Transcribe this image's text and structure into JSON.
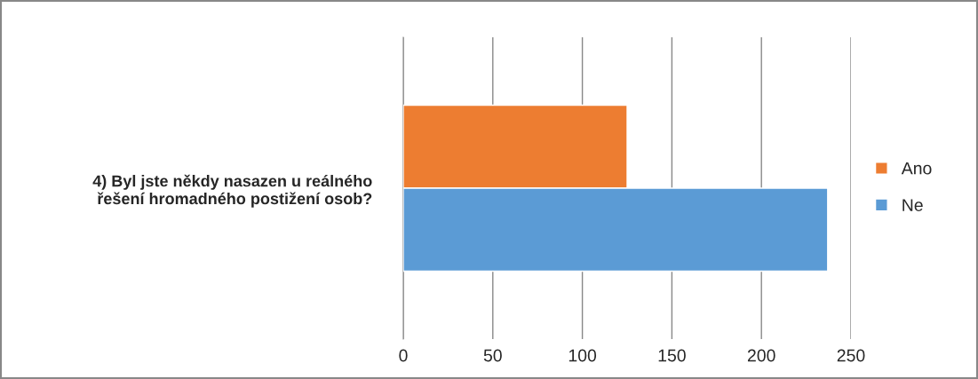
{
  "chart_data": {
    "type": "bar",
    "orientation": "horizontal",
    "categories": [
      "4) Byl jste někdy nasazen u reálného řešení hromadného postižení osob?"
    ],
    "series": [
      {
        "name": "Ano",
        "color": "#ed7d31",
        "values": [
          125
        ]
      },
      {
        "name": "Ne",
        "color": "#5b9bd5",
        "values": [
          237
        ]
      }
    ],
    "xlim": [
      0,
      250
    ],
    "xticks": [
      0,
      50,
      100,
      150,
      200,
      250
    ],
    "grid": "x",
    "legend": "right"
  }
}
